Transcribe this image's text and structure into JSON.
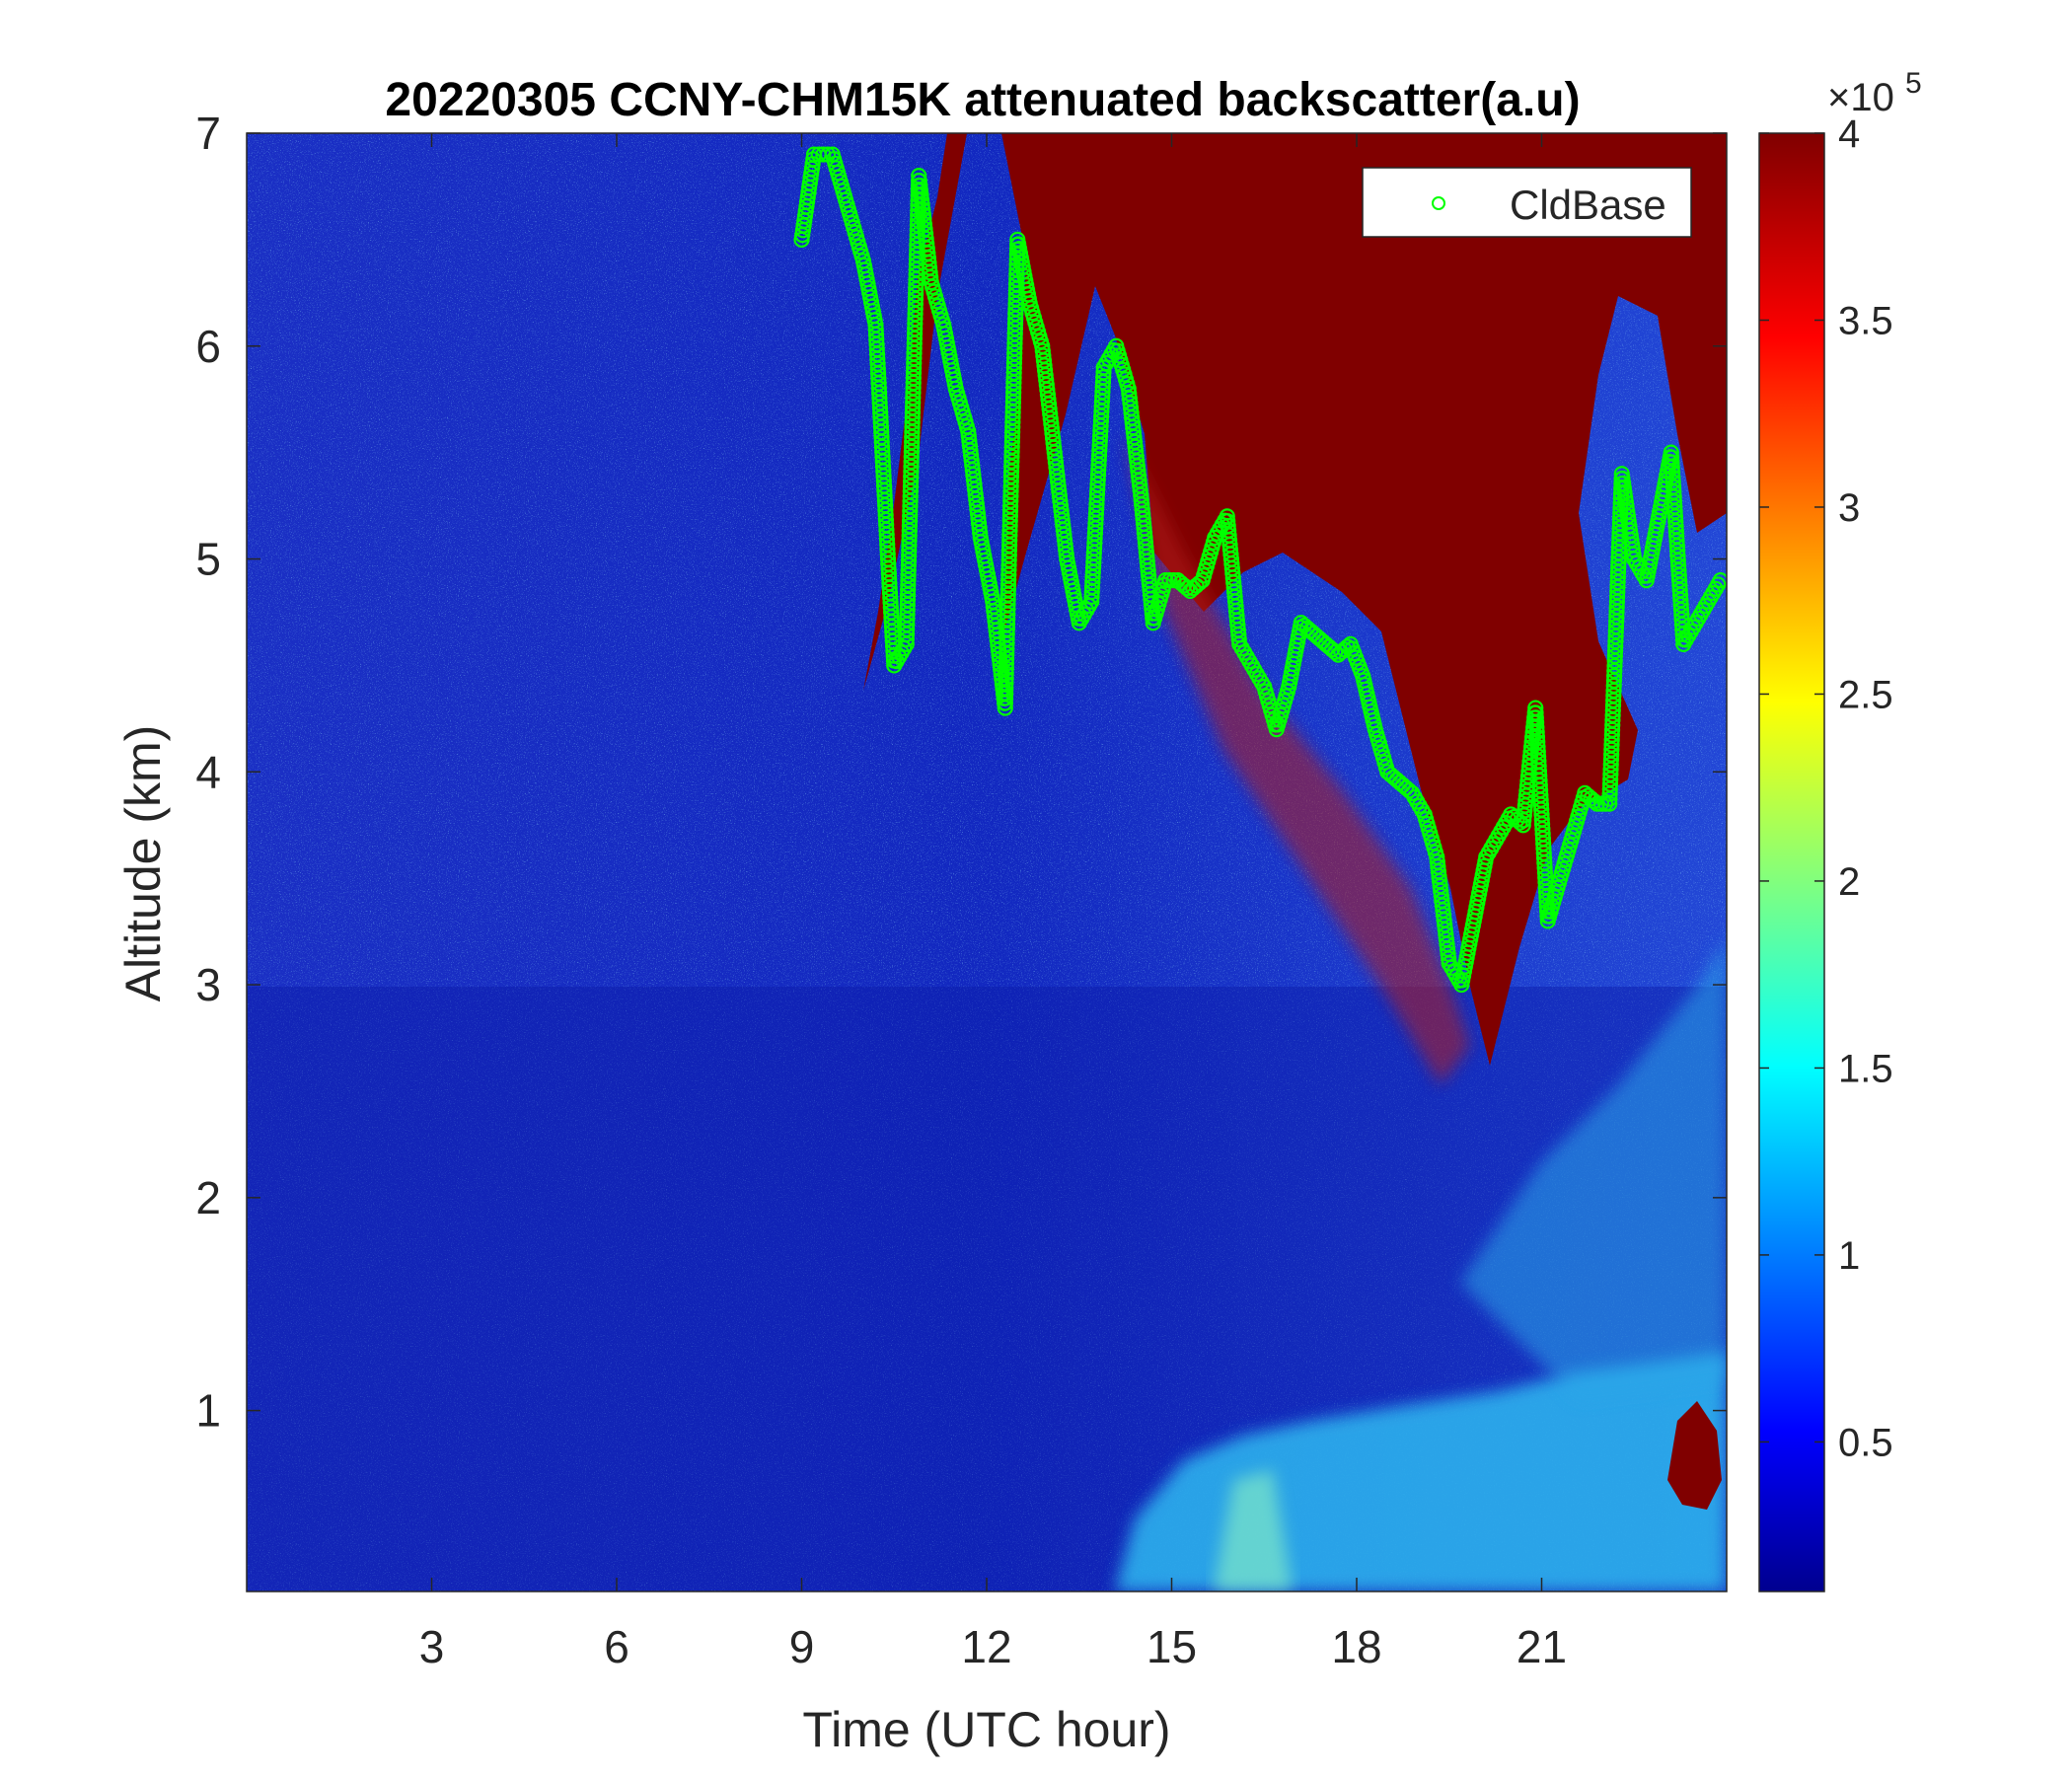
{
  "chart_data": {
    "type": "heatmap",
    "title": "20220305 CCNY-CHM15K attenuated backscatter(a.u)",
    "xlabel": "Time (UTC hour)",
    "ylabel": "Altitude (km)",
    "xlim": [
      0,
      24
    ],
    "ylim": [
      0.15,
      7
    ],
    "xticks": [
      3,
      6,
      9,
      12,
      15,
      18,
      21
    ],
    "yticks": [
      1,
      2,
      3,
      4,
      5,
      6,
      7
    ],
    "grid": false,
    "colorbar": {
      "colormap": "jet",
      "clim": [
        0.1,
        4
      ],
      "ticks": [
        0.5,
        1,
        1.5,
        2,
        2.5,
        3,
        3.5,
        4
      ],
      "tick_labels": [
        "0.5",
        "1",
        "1.5",
        "2",
        "2.5",
        "3",
        "3.5",
        "4"
      ],
      "multiplier_base": "×10",
      "multiplier_exp": "5"
    },
    "legend": {
      "placement": "top-right",
      "entries": [
        {
          "label": "CldBase",
          "marker": "circle",
          "color": "#00ff00"
        }
      ]
    },
    "cloud_base": {
      "name": "CldBase",
      "color": "#00ff00",
      "x": [
        9.0,
        9.2,
        9.5,
        9.8,
        10.0,
        10.2,
        10.4,
        10.5,
        10.7,
        10.9,
        11.1,
        11.3,
        11.5,
        11.7,
        11.9,
        12.1,
        12.3,
        12.5,
        12.7,
        12.9,
        13.1,
        13.3,
        13.5,
        13.7,
        13.9,
        14.1,
        14.3,
        14.5,
        14.7,
        14.9,
        15.1,
        15.3,
        15.5,
        15.7,
        15.9,
        16.1,
        16.3,
        16.5,
        16.7,
        16.9,
        17.1,
        17.3,
        17.5,
        17.7,
        17.9,
        18.1,
        18.3,
        18.5,
        18.7,
        18.9,
        19.1,
        19.3,
        19.5,
        19.7,
        19.9,
        20.1,
        20.3,
        20.5,
        20.7,
        20.9,
        21.1,
        21.3,
        21.5,
        21.7,
        21.9,
        22.1,
        22.3,
        22.5,
        22.7,
        22.9,
        23.1,
        23.3,
        23.5,
        23.7,
        23.9
      ],
      "y": [
        6.5,
        6.9,
        6.9,
        6.6,
        6.4,
        6.1,
        5.0,
        4.5,
        4.6,
        6.8,
        6.3,
        6.1,
        5.8,
        5.6,
        5.1,
        4.8,
        4.3,
        6.5,
        6.2,
        6.0,
        5.5,
        5.0,
        4.7,
        4.8,
        5.9,
        6.0,
        5.8,
        5.3,
        4.7,
        4.9,
        4.9,
        4.85,
        4.9,
        5.1,
        5.2,
        4.6,
        4.5,
        4.4,
        4.2,
        4.4,
        4.7,
        4.65,
        4.6,
        4.55,
        4.6,
        4.45,
        4.2,
        4.0,
        3.95,
        3.9,
        3.8,
        3.6,
        3.1,
        3.0,
        3.3,
        3.6,
        3.7,
        3.8,
        3.75,
        4.3,
        3.3,
        3.5,
        3.7,
        3.9,
        3.85,
        3.85,
        5.4,
        5.0,
        4.9,
        5.2,
        5.5,
        4.6,
        4.7,
        4.8,
        4.9
      ]
    }
  }
}
